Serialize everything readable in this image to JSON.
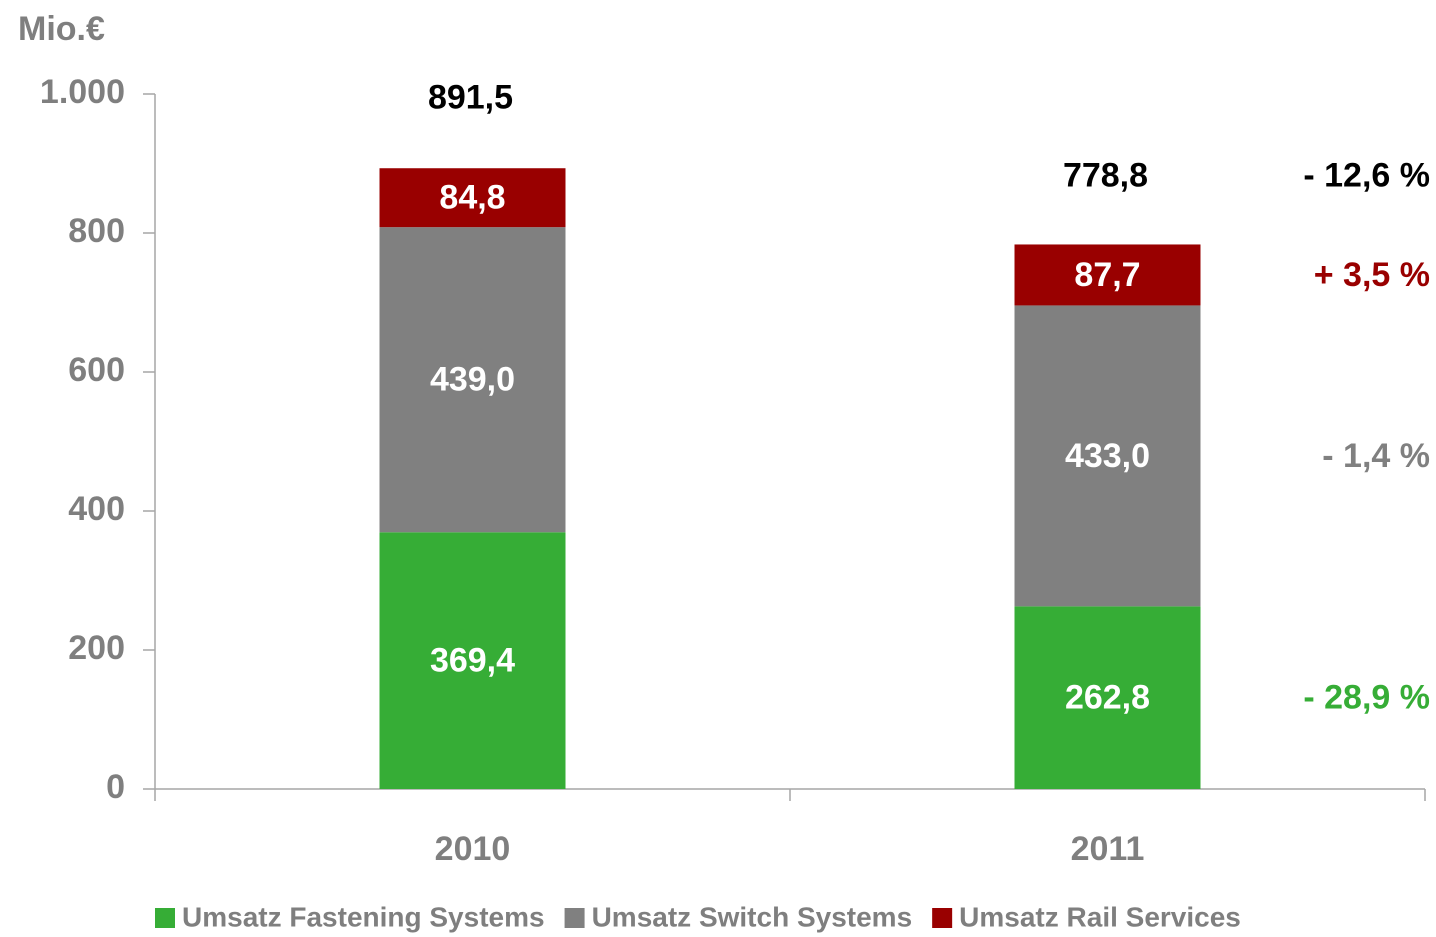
{
  "chart_data": {
    "type": "stacked_bar",
    "y_label": "Mio.€",
    "categories": [
      "2010",
      "2011"
    ],
    "ylim": [
      0,
      1000
    ],
    "yticks": [
      0,
      200,
      400,
      600,
      800,
      {
        "value": 1000,
        "label": "1.000"
      }
    ],
    "series": [
      {
        "name": "Umsatz Fastening Systems",
        "color": "#36ad36",
        "values": [
          369.4,
          262.8
        ],
        "value_labels": [
          "369,4",
          "262,8"
        ],
        "change_label": "- 28,9 %"
      },
      {
        "name": "Umsatz Switch Systems",
        "color": "#808080",
        "values": [
          439.0,
          433.0
        ],
        "value_labels": [
          "439,0",
          "433,0"
        ],
        "change_label": "- 1,4 %"
      },
      {
        "name": "Umsatz Rail Services",
        "color": "#990000",
        "values": [
          84.8,
          87.7
        ],
        "value_labels": [
          "84,8",
          "87,7"
        ],
        "change_label": "+ 3,5 %"
      }
    ],
    "totals": {
      "values": [
        891.5,
        778.8
      ],
      "value_labels": [
        "891,5",
        "778,8"
      ],
      "change_label": "- 12,6 %",
      "color": "#000000"
    },
    "legend": "bottom"
  }
}
